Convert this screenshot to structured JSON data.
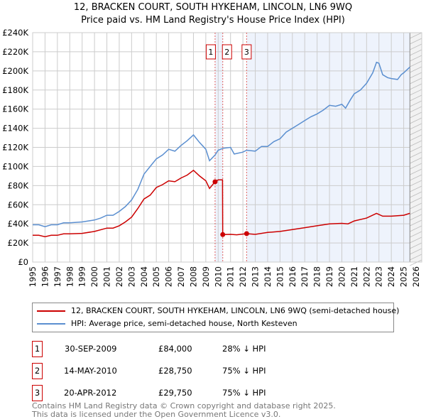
{
  "chart_data": {
    "type": "line",
    "title": "12, BRACKEN COURT, SOUTH HYKEHAM, LINCOLN, LN6 9WQ",
    "subtitle": "Price paid vs. HM Land Registry's House Price Index (HPI)",
    "xlim": [
      1995,
      2026
    ],
    "ylim": [
      0,
      240000
    ],
    "yticks": [
      0,
      20000,
      40000,
      60000,
      80000,
      100000,
      120000,
      140000,
      160000,
      180000,
      200000,
      220000,
      240000
    ],
    "ytick_labels": [
      "£0",
      "£20K",
      "£40K",
      "£60K",
      "£80K",
      "£100K",
      "£120K",
      "£140K",
      "£160K",
      "£180K",
      "£200K",
      "£220K",
      "£240K"
    ],
    "xticks": [
      1995,
      1996,
      1997,
      1998,
      1999,
      2000,
      2001,
      2002,
      2003,
      2004,
      2005,
      2006,
      2007,
      2008,
      2009,
      2010,
      2011,
      2012,
      2013,
      2014,
      2015,
      2016,
      2017,
      2018,
      2019,
      2020,
      2021,
      2022,
      2023,
      2024,
      2025,
      2026
    ],
    "grid": true,
    "colors": {
      "price": "#cc0000",
      "hpi": "#5b8fd0",
      "shade": "#eef3fc",
      "marker_line": "#e06060"
    },
    "series": [
      {
        "name": "12, BRACKEN COURT, SOUTH HYKEHAM, LINCOLN, LN6 9WQ (semi-detached house)",
        "key": "price",
        "x": [
          1995,
          1995.5,
          1996,
          1996.5,
          1997,
          1997.5,
          1998,
          1999,
          2000,
          2001,
          2001.5,
          2002,
          2002.5,
          2003,
          2003.5,
          2004,
          2004.5,
          2005,
          2005.5,
          2006,
          2006.5,
          2007,
          2007.5,
          2008,
          2008.5,
          2009,
          2009.3,
          2009.75,
          2010,
          2010.35,
          2010.37,
          2011,
          2011.5,
          2012.3,
          2013,
          2014,
          2015,
          2016,
          2017,
          2018,
          2019,
          2020,
          2020.5,
          2021,
          2022,
          2022.8,
          2023.3,
          2024,
          2025,
          2025.5
        ],
        "y": [
          28000,
          28000,
          26500,
          28000,
          28000,
          29500,
          29500,
          30000,
          32000,
          35500,
          35500,
          38000,
          42000,
          47000,
          56000,
          66000,
          70000,
          78000,
          81000,
          85000,
          84000,
          88000,
          91000,
          96000,
          90000,
          85000,
          77000,
          84000,
          86000,
          86000,
          28750,
          29000,
          28500,
          29750,
          29000,
          31000,
          32000,
          34000,
          36000,
          38000,
          40000,
          40500,
          40000,
          43000,
          46000,
          51000,
          48000,
          48000,
          49000,
          51000
        ]
      },
      {
        "name": "HPI: Average price, semi-detached house, North Kesteven",
        "key": "hpi",
        "x": [
          1995,
          1995.5,
          1996,
          1996.5,
          1997,
          1997.5,
          1998,
          1999,
          1999.5,
          2000,
          2000.5,
          2001,
          2001.5,
          2002,
          2002.5,
          2003,
          2003.5,
          2004,
          2004.5,
          2005,
          2005.5,
          2006,
          2006.5,
          2007,
          2007.5,
          2008,
          2008.5,
          2009,
          2009.3,
          2009.75,
          2010,
          2010.4,
          2011,
          2011.3,
          2012,
          2012.3,
          2013,
          2013.5,
          2014,
          2014.5,
          2015,
          2015.5,
          2016,
          2016.5,
          2017,
          2017.5,
          2018,
          2018.5,
          2019,
          2019.5,
          2020,
          2020.3,
          2020.7,
          2021,
          2021.5,
          2022,
          2022.5,
          2022.8,
          2023,
          2023.3,
          2023.7,
          2024,
          2024.5,
          2024.8,
          2025,
          2025.5
        ],
        "y": [
          39000,
          39000,
          37000,
          39000,
          39000,
          41000,
          41000,
          42000,
          43000,
          44000,
          46000,
          49000,
          49000,
          53000,
          58000,
          65000,
          76000,
          92000,
          100000,
          108000,
          112000,
          118000,
          116000,
          122000,
          127000,
          133000,
          125000,
          118000,
          106000,
          112000,
          117000,
          119000,
          120000,
          113000,
          115000,
          117000,
          116000,
          121000,
          121000,
          126000,
          129000,
          136000,
          140000,
          144000,
          148000,
          152000,
          155000,
          159000,
          164000,
          163000,
          165000,
          161000,
          170000,
          176000,
          180000,
          187000,
          198000,
          209000,
          208000,
          196000,
          193000,
          192000,
          191000,
          196000,
          198000,
          204000
        ]
      }
    ],
    "sales": [
      {
        "label": "1",
        "x": 2009.75,
        "price": 84000,
        "date": "30-SEP-2009",
        "price_text": "£84,000",
        "hpi_text": "28% ↓ HPI"
      },
      {
        "label": "2",
        "x": 2010.37,
        "price": 28750,
        "date": "14-MAY-2010",
        "price_text": "£28,750",
        "hpi_text": "75% ↓ HPI"
      },
      {
        "label": "3",
        "x": 2012.3,
        "price": 29750,
        "date": "20-APR-2012",
        "price_text": "£29,750",
        "hpi_text": "75% ↓ HPI"
      }
    ],
    "forecast_start": 2025.5
  },
  "footer": [
    "Contains HM Land Registry data © Crown copyright and database right 2025.",
    "This data is licensed under the Open Government Licence v3.0."
  ]
}
